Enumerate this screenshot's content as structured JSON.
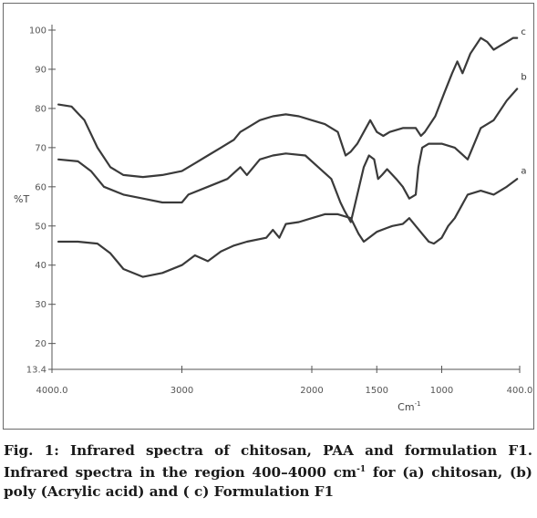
{
  "caption": {
    "lead": "Fig. 1: Infrared spectra of chitosan, PAA and formulation F1.",
    "text_before_sup": "Infrared spectra in the region 400–4000 cm",
    "superscript": "-1",
    "text_after_sup": " for (a) chitosan, (b) poly (Acrylic acid)  and ( c) Formulation F1"
  },
  "chart_data": {
    "type": "line",
    "title": "",
    "xlabel": "Cm",
    "xlabel_sup": "-1",
    "ylabel": "%T",
    "xlim": [
      4000,
      400
    ],
    "ylim": [
      13.4,
      100
    ],
    "x_reversed": true,
    "grid": false,
    "x_ticks": [
      {
        "value": 4000,
        "label": "4000.0"
      },
      {
        "value": 3000,
        "label": "3000"
      },
      {
        "value": 2000,
        "label": "2000"
      },
      {
        "value": 1500,
        "label": "1500"
      },
      {
        "value": 1000,
        "label": "1000"
      },
      {
        "value": 400,
        "label": "400.0"
      }
    ],
    "y_ticks": [
      {
        "value": 13.4,
        "label": "13.4"
      },
      {
        "value": 20,
        "label": "20"
      },
      {
        "value": 30,
        "label": "30"
      },
      {
        "value": 40,
        "label": "40"
      },
      {
        "value": 50,
        "label": "50"
      },
      {
        "value": 60,
        "label": "60"
      },
      {
        "value": 70,
        "label": "70"
      },
      {
        "value": 80,
        "label": "80"
      },
      {
        "value": 90,
        "label": "90"
      },
      {
        "value": 100,
        "label": "100"
      }
    ],
    "series": [
      {
        "name": "a",
        "color": "#3a3a3a",
        "points": [
          [
            3950,
            46
          ],
          [
            3800,
            46
          ],
          [
            3650,
            45.5
          ],
          [
            3550,
            43
          ],
          [
            3450,
            39
          ],
          [
            3300,
            37
          ],
          [
            3150,
            38
          ],
          [
            3000,
            40
          ],
          [
            2900,
            42.5
          ],
          [
            2800,
            41
          ],
          [
            2700,
            43.5
          ],
          [
            2600,
            45
          ],
          [
            2500,
            46
          ],
          [
            2350,
            47
          ],
          [
            2300,
            49
          ],
          [
            2250,
            47
          ],
          [
            2200,
            50.5
          ],
          [
            2100,
            51
          ],
          [
            2000,
            52
          ],
          [
            1900,
            53
          ],
          [
            1800,
            53
          ],
          [
            1700,
            52
          ],
          [
            1640,
            48
          ],
          [
            1600,
            46
          ],
          [
            1560,
            47
          ],
          [
            1500,
            48.5
          ],
          [
            1420,
            49.5
          ],
          [
            1380,
            50
          ],
          [
            1300,
            50.5
          ],
          [
            1250,
            52
          ],
          [
            1200,
            50
          ],
          [
            1150,
            48
          ],
          [
            1100,
            46
          ],
          [
            1060,
            45.5
          ],
          [
            1000,
            47
          ],
          [
            950,
            50
          ],
          [
            900,
            52
          ],
          [
            800,
            58
          ],
          [
            700,
            59
          ],
          [
            600,
            58
          ],
          [
            500,
            60
          ],
          [
            420,
            62
          ]
        ]
      },
      {
        "name": "b",
        "color": "#3a3a3a",
        "points": [
          [
            3950,
            67
          ],
          [
            3800,
            66.5
          ],
          [
            3700,
            64
          ],
          [
            3600,
            60
          ],
          [
            3450,
            58
          ],
          [
            3300,
            57
          ],
          [
            3150,
            56
          ],
          [
            3000,
            56
          ],
          [
            2950,
            58
          ],
          [
            2800,
            60
          ],
          [
            2650,
            62
          ],
          [
            2550,
            65
          ],
          [
            2500,
            63
          ],
          [
            2400,
            67
          ],
          [
            2300,
            68
          ],
          [
            2200,
            68.5
          ],
          [
            2050,
            68
          ],
          [
            1950,
            65
          ],
          [
            1850,
            62
          ],
          [
            1780,
            56
          ],
          [
            1750,
            54
          ],
          [
            1700,
            51
          ],
          [
            1650,
            58
          ],
          [
            1600,
            65
          ],
          [
            1560,
            68
          ],
          [
            1520,
            67
          ],
          [
            1490,
            62
          ],
          [
            1460,
            63
          ],
          [
            1420,
            64.5
          ],
          [
            1350,
            62
          ],
          [
            1300,
            60
          ],
          [
            1250,
            57
          ],
          [
            1200,
            58
          ],
          [
            1180,
            65
          ],
          [
            1150,
            70
          ],
          [
            1100,
            71
          ],
          [
            1000,
            71
          ],
          [
            900,
            70
          ],
          [
            800,
            67
          ],
          [
            700,
            75
          ],
          [
            600,
            77
          ],
          [
            500,
            82
          ],
          [
            420,
            85
          ]
        ]
      },
      {
        "name": "c",
        "color": "#3a3a3a",
        "points": [
          [
            3950,
            81
          ],
          [
            3850,
            80.5
          ],
          [
            3750,
            77
          ],
          [
            3650,
            70
          ],
          [
            3550,
            65
          ],
          [
            3450,
            63
          ],
          [
            3300,
            62.5
          ],
          [
            3150,
            63
          ],
          [
            3000,
            64
          ],
          [
            2900,
            66
          ],
          [
            2800,
            68
          ],
          [
            2700,
            70
          ],
          [
            2600,
            72
          ],
          [
            2550,
            74
          ],
          [
            2500,
            75
          ],
          [
            2400,
            77
          ],
          [
            2300,
            78
          ],
          [
            2200,
            78.5
          ],
          [
            2100,
            78
          ],
          [
            2000,
            77
          ],
          [
            1900,
            76
          ],
          [
            1800,
            74
          ],
          [
            1760,
            70
          ],
          [
            1740,
            68
          ],
          [
            1700,
            69
          ],
          [
            1650,
            71
          ],
          [
            1600,
            74
          ],
          [
            1550,
            77
          ],
          [
            1500,
            74
          ],
          [
            1450,
            73
          ],
          [
            1400,
            74
          ],
          [
            1300,
            75
          ],
          [
            1200,
            75
          ],
          [
            1160,
            73
          ],
          [
            1130,
            74
          ],
          [
            1050,
            78
          ],
          [
            980,
            84
          ],
          [
            920,
            89
          ],
          [
            880,
            92
          ],
          [
            840,
            89
          ],
          [
            780,
            94
          ],
          [
            700,
            98
          ],
          [
            650,
            97
          ],
          [
            600,
            95
          ],
          [
            550,
            96
          ],
          [
            500,
            97
          ],
          [
            450,
            98
          ],
          [
            420,
            98
          ]
        ]
      }
    ],
    "series_labels": [
      {
        "series": "c",
        "text": "c",
        "x": 390,
        "y": 99.5
      },
      {
        "series": "b",
        "text": "b",
        "x": 390,
        "y": 88
      },
      {
        "series": "a",
        "text": "a",
        "x": 390,
        "y": 64
      }
    ]
  }
}
